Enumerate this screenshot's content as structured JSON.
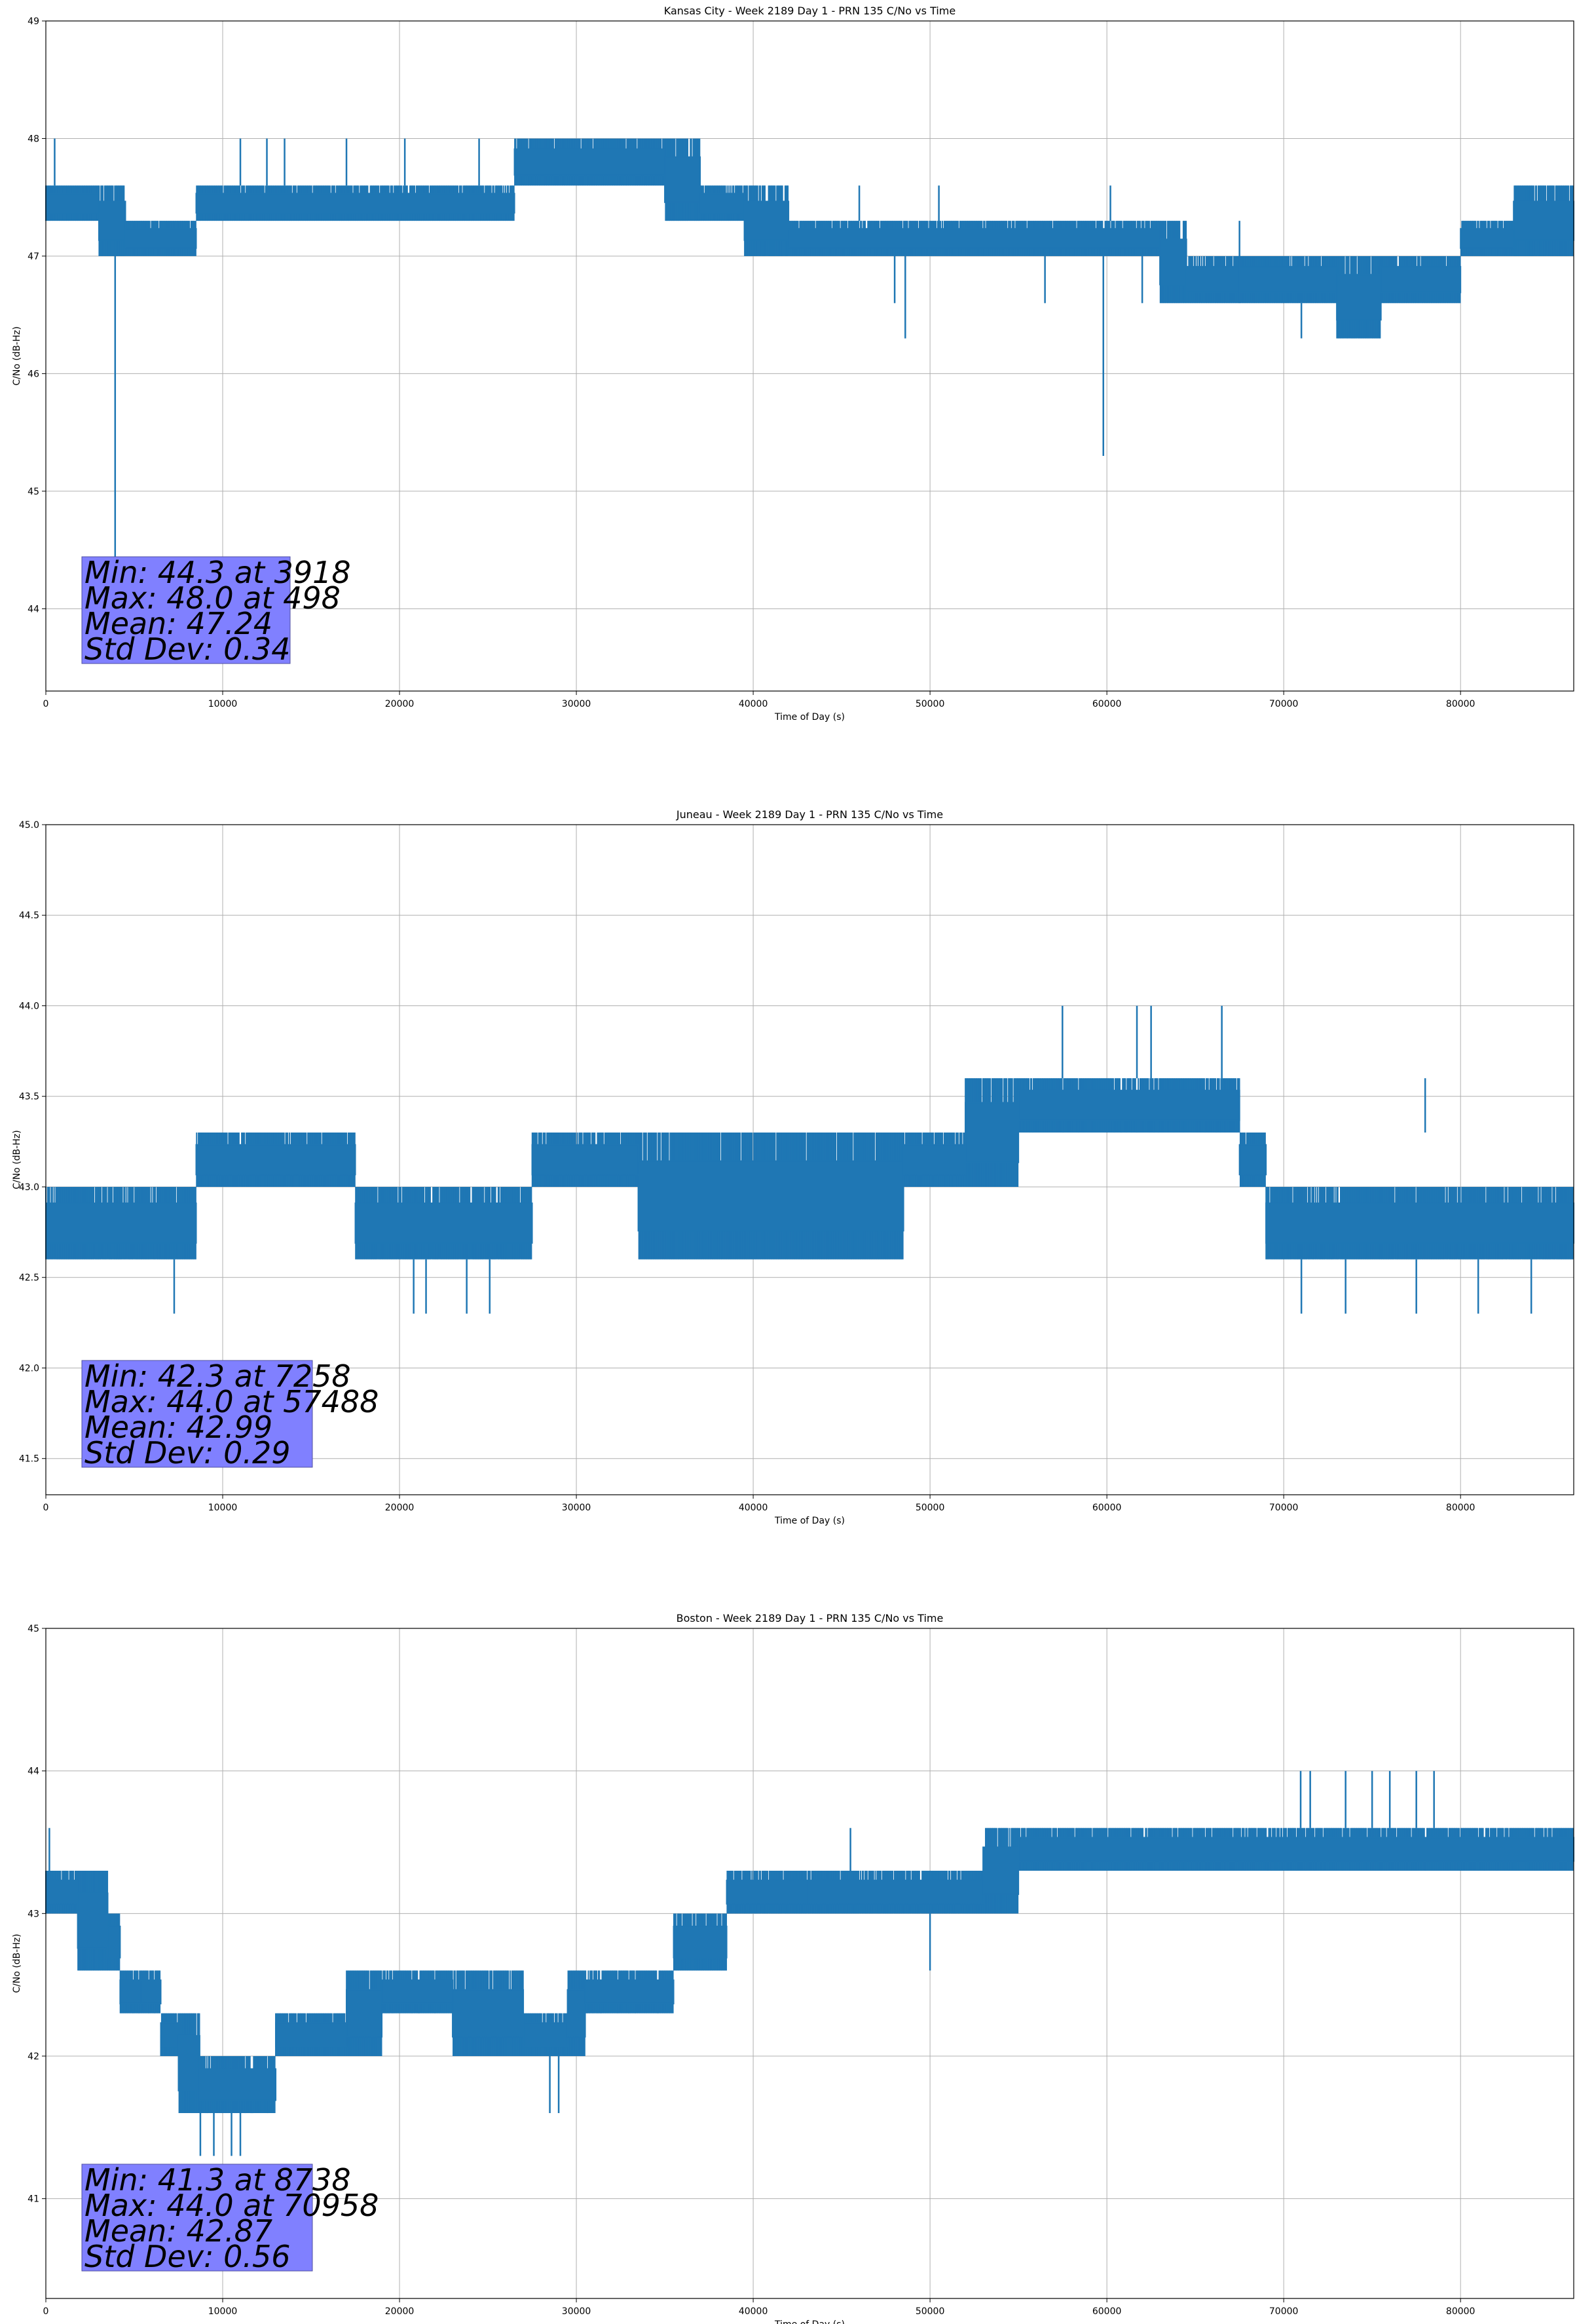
{
  "chart_data": [
    {
      "type": "line",
      "title": "Kansas City - Week 2189 Day 1 - PRN 135 C/No vs Time",
      "xlabel": "Time of Day (s)",
      "ylabel": "C/No (dB-Hz)",
      "xlim": [
        0,
        86400
      ],
      "ylim": [
        43.3,
        49.0
      ],
      "xticks": [
        0,
        10000,
        20000,
        30000,
        40000,
        50000,
        60000,
        70000,
        80000
      ],
      "yticks": [
        44,
        45,
        46,
        47,
        48,
        49
      ],
      "yprecision": 0,
      "color": "#1f77b4",
      "grid": true,
      "stats": [
        "Min: 44.3 at 3918",
        "Max: 48.0 at 498",
        "Mean: 47.24",
        "Std Dev: 0.34"
      ],
      "band": [
        [
          0,
          47.3,
          47.6
        ],
        [
          3000,
          47.0,
          47.6
        ],
        [
          4500,
          47.0,
          47.3
        ],
        [
          8500,
          47.3,
          47.6
        ],
        [
          26500,
          47.6,
          48.0
        ],
        [
          35000,
          47.3,
          48.0
        ],
        [
          37000,
          47.3,
          47.6
        ],
        [
          39500,
          47.0,
          47.6
        ],
        [
          42000,
          47.0,
          47.3
        ],
        [
          63000,
          46.6,
          47.3
        ],
        [
          64500,
          46.6,
          47.0
        ],
        [
          73000,
          46.3,
          47.0
        ],
        [
          75500,
          46.6,
          47.0
        ],
        [
          80000,
          47.0,
          47.3
        ],
        [
          83000,
          47.0,
          47.6
        ],
        [
          86400,
          47.0,
          47.6
        ]
      ],
      "spikes": [
        [
          498,
          47.6,
          48.0
        ],
        [
          3918,
          44.3,
          47.0
        ],
        [
          11000,
          47.6,
          48.0
        ],
        [
          12500,
          47.6,
          48.0
        ],
        [
          13500,
          47.6,
          48.0
        ],
        [
          17000,
          47.6,
          48.0
        ],
        [
          20300,
          47.6,
          48.0
        ],
        [
          24500,
          47.6,
          48.0
        ],
        [
          46000,
          47.3,
          47.6
        ],
        [
          48000,
          46.6,
          47.0
        ],
        [
          48600,
          46.3,
          47.0
        ],
        [
          50500,
          47.3,
          47.6
        ],
        [
          56500,
          46.6,
          47.0
        ],
        [
          59800,
          45.3,
          47.0
        ],
        [
          60200,
          47.3,
          47.6
        ],
        [
          62000,
          46.6,
          47.0
        ],
        [
          67500,
          46.6,
          47.3
        ],
        [
          71000,
          46.3,
          46.6
        ]
      ]
    },
    {
      "type": "line",
      "title": "Juneau - Week 2189 Day 1 - PRN 135 C/No vs Time",
      "xlabel": "Time of Day (s)",
      "ylabel": "C/No (dB-Hz)",
      "xlim": [
        0,
        86400
      ],
      "ylim": [
        41.3,
        45.0
      ],
      "xticks": [
        0,
        10000,
        20000,
        30000,
        40000,
        50000,
        60000,
        70000,
        80000
      ],
      "yticks": [
        41.5,
        42.0,
        42.5,
        43.0,
        43.5,
        44.0,
        44.5,
        45.0
      ],
      "yprecision": 1,
      "color": "#1f77b4",
      "grid": true,
      "stats": [
        "Min: 42.3 at 7258",
        "Max: 44.0 at 57488",
        "Mean: 42.99",
        "Std Dev: 0.29"
      ],
      "band": [
        [
          0,
          42.6,
          43.0
        ],
        [
          8500,
          43.0,
          43.3
        ],
        [
          17500,
          42.6,
          43.0
        ],
        [
          27500,
          43.0,
          43.3
        ],
        [
          33500,
          42.6,
          43.3
        ],
        [
          48500,
          43.0,
          43.3
        ],
        [
          52000,
          43.0,
          43.6
        ],
        [
          55000,
          43.3,
          43.6
        ],
        [
          67500,
          43.0,
          43.3
        ],
        [
          69000,
          42.6,
          43.0
        ],
        [
          86400,
          42.6,
          43.0
        ]
      ],
      "spikes": [
        [
          7258,
          42.3,
          42.6
        ],
        [
          20800,
          42.3,
          42.6
        ],
        [
          21500,
          42.3,
          42.6
        ],
        [
          23800,
          42.3,
          42.6
        ],
        [
          25100,
          42.3,
          42.6
        ],
        [
          57488,
          43.6,
          44.0
        ],
        [
          61700,
          43.6,
          44.0
        ],
        [
          62500,
          43.6,
          44.0
        ],
        [
          66500,
          43.6,
          44.0
        ],
        [
          78000,
          43.3,
          43.6
        ],
        [
          71000,
          42.3,
          42.6
        ],
        [
          73500,
          42.3,
          42.6
        ],
        [
          77500,
          42.3,
          42.6
        ],
        [
          81000,
          42.3,
          42.6
        ],
        [
          84000,
          42.3,
          42.6
        ]
      ]
    },
    {
      "type": "line",
      "title": "Boston - Week 2189 Day 1 - PRN 135 C/No vs Time",
      "xlabel": "Time of Day (s)",
      "ylabel": "C/No (dB-Hz)",
      "xlim": [
        0,
        86400
      ],
      "ylim": [
        40.3,
        45.0
      ],
      "xticks": [
        0,
        10000,
        20000,
        30000,
        40000,
        50000,
        60000,
        70000,
        80000
      ],
      "yticks": [
        41,
        42,
        43,
        44,
        45
      ],
      "yprecision": 0,
      "color": "#1f77b4",
      "grid": true,
      "stats": [
        "Min: 41.3 at 8738",
        "Max: 44.0 at 70958",
        "Mean: 42.87",
        "Std Dev: 0.56"
      ],
      "band": [
        [
          0,
          43.0,
          43.3
        ],
        [
          1800,
          42.6,
          43.3
        ],
        [
          3500,
          42.6,
          43.0
        ],
        [
          4200,
          42.3,
          42.6
        ],
        [
          5400,
          42.3,
          42.6
        ],
        [
          6500,
          42.0,
          42.3
        ],
        [
          7500,
          41.6,
          42.3
        ],
        [
          8700,
          41.6,
          42.0
        ],
        [
          13000,
          42.0,
          42.3
        ],
        [
          17000,
          42.0,
          42.6
        ],
        [
          19000,
          42.3,
          42.6
        ],
        [
          23000,
          42.0,
          42.6
        ],
        [
          27000,
          42.0,
          42.3
        ],
        [
          29500,
          42.0,
          42.6
        ],
        [
          30500,
          42.3,
          42.6
        ],
        [
          35500,
          42.6,
          43.0
        ],
        [
          38500,
          43.0,
          43.3
        ],
        [
          43000,
          43.0,
          43.3
        ],
        [
          53000,
          43.0,
          43.6
        ],
        [
          55000,
          43.3,
          43.6
        ],
        [
          86400,
          43.3,
          43.6
        ]
      ],
      "spikes": [
        [
          200,
          43.3,
          43.6
        ],
        [
          8738,
          41.3,
          41.6
        ],
        [
          9500,
          41.3,
          41.6
        ],
        [
          10500,
          41.3,
          41.6
        ],
        [
          11000,
          41.3,
          41.6
        ],
        [
          28500,
          41.6,
          42.0
        ],
        [
          29000,
          41.6,
          42.0
        ],
        [
          45500,
          43.3,
          43.6
        ],
        [
          50000,
          42.6,
          43.0
        ],
        [
          70958,
          43.6,
          44.0
        ],
        [
          71500,
          43.6,
          44.0
        ],
        [
          73500,
          43.6,
          44.0
        ],
        [
          75000,
          43.6,
          44.0
        ],
        [
          76000,
          43.6,
          44.0
        ],
        [
          77500,
          43.6,
          44.0
        ],
        [
          78500,
          43.6,
          44.0
        ]
      ]
    }
  ]
}
